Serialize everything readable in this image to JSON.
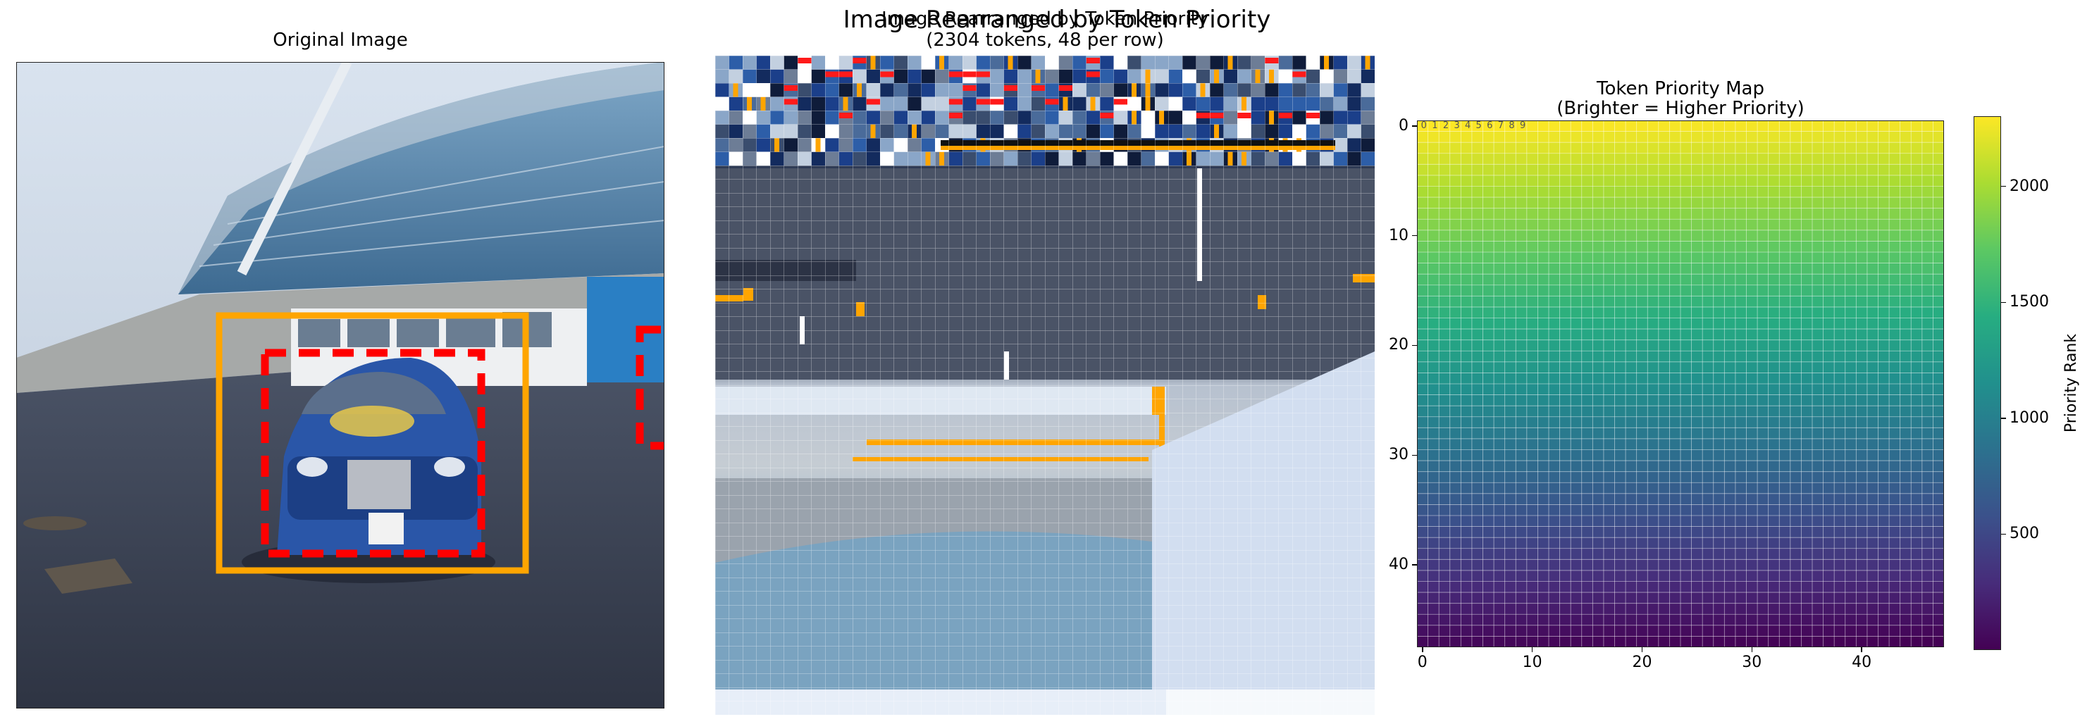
{
  "figure": {
    "suptitle": "Image Rearranged by Token Priority"
  },
  "panels": {
    "original": {
      "title": "Original Image"
    },
    "rearranged": {
      "title_line1": "Image Rearranged by Token Priority",
      "title_line2": "(2304 tokens, 48 per row)"
    },
    "priority": {
      "title_line1": "Token Priority Map",
      "title_line2": "(Brighter = Higher Priority)",
      "cell_labels": [
        "0",
        "1",
        "2",
        "3",
        "4",
        "5",
        "6",
        "7",
        "8",
        "9"
      ]
    }
  },
  "colors": {
    "box_solid": "#ffa500",
    "box_dashed": "#ff0000",
    "grid_line": "#ffffff"
  },
  "chart_data": [
    {
      "type": "image",
      "title": "Original Image",
      "annotations": [
        {
          "kind": "box",
          "style": "solid",
          "color": "orange"
        },
        {
          "kind": "box",
          "style": "dashed",
          "color": "red"
        },
        {
          "kind": "box",
          "style": "dashed",
          "color": "red",
          "clipped": true
        }
      ]
    },
    {
      "type": "image",
      "title": "Image Rearranged by Token Priority\n(2304 tokens, 48 per row)",
      "tokens": 2304,
      "per_row": 48,
      "grid": true
    },
    {
      "type": "heatmap",
      "title": "Token Priority Map\n(Brighter = Higher Priority)",
      "rows": 48,
      "cols": 48,
      "colormap": "viridis",
      "value_range": [
        0,
        2303
      ],
      "value_rule": "rank = 2303 - (row*48 + col)",
      "xticks": [
        0,
        10,
        20,
        30,
        40
      ],
      "yticks": [
        0,
        10,
        20,
        30,
        40
      ],
      "colorbar": {
        "label": "Priority Rank",
        "ticks": [
          500,
          1000,
          1500,
          2000
        ]
      },
      "grid": true
    }
  ]
}
